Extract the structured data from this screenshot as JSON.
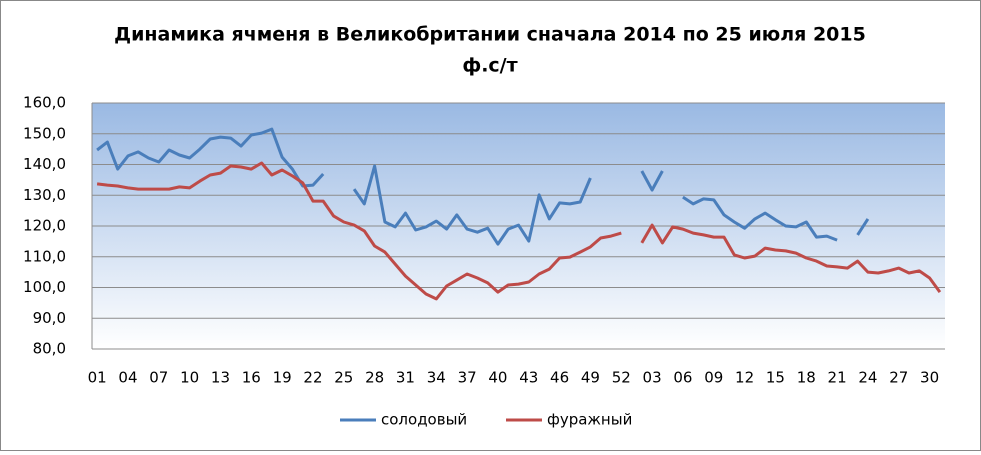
{
  "chart_data": {
    "type": "line",
    "title": "Динамика ячменя в Великобритании сначала 2014 по 25 июля 2015",
    "subtitle": "ф.с/т",
    "categories": [
      "01",
      null,
      null,
      "04",
      null,
      null,
      "07",
      null,
      null,
      "10",
      null,
      null,
      "13",
      null,
      null,
      "16",
      null,
      null,
      "19",
      null,
      null,
      "22",
      null,
      null,
      "25",
      null,
      null,
      "28",
      null,
      null,
      "31",
      null,
      null,
      "34",
      null,
      null,
      "37",
      null,
      null,
      "40",
      null,
      null,
      "43",
      null,
      null,
      "46",
      null,
      null,
      "49",
      null,
      null,
      "52",
      null,
      null,
      "03",
      null,
      null,
      "06",
      null,
      null,
      "09",
      null,
      null,
      "12",
      null,
      null,
      "15",
      null,
      null,
      "18",
      null,
      null,
      "21",
      null,
      null,
      "24",
      null,
      null,
      "27",
      null,
      null,
      "30",
      null
    ],
    "series": [
      {
        "name": "солодовый",
        "color": "#4a7ebb",
        "values": [
          144.7,
          147.3,
          138.5,
          142.8,
          144.1,
          142.1,
          140.8,
          144.7,
          143.1,
          142.1,
          145.0,
          148.3,
          148.9,
          148.6,
          146.0,
          149.6,
          150.2,
          151.5,
          142.4,
          138.5,
          133.0,
          133.3,
          136.9,
          null,
          null,
          132.0,
          127.2,
          139.5,
          121.3,
          119.7,
          124.2,
          118.7,
          119.7,
          121.6,
          119.0,
          123.6,
          119.0,
          118.0,
          119.3,
          114.1,
          119.0,
          120.3,
          115.1,
          130.1,
          122.3,
          127.5,
          127.2,
          127.8,
          135.6,
          null,
          null,
          null,
          null,
          137.9,
          131.7,
          137.9,
          null,
          129.4,
          127.2,
          128.8,
          128.5,
          123.6,
          121.3,
          119.3,
          122.3,
          124.2,
          122.0,
          120.0,
          119.7,
          121.3,
          116.4,
          116.7,
          115.4,
          null,
          117.1,
          122.3,
          null,
          null,
          null,
          null,
          null,
          null,
          null
        ]
      },
      {
        "name": "фуражный",
        "color": "#be4b48",
        "values": [
          133.7,
          133.3,
          133.0,
          132.4,
          132.0,
          132.0,
          132.0,
          132.0,
          132.7,
          132.4,
          134.6,
          136.6,
          137.2,
          139.5,
          139.2,
          138.5,
          140.5,
          136.6,
          138.2,
          136.3,
          134.0,
          128.1,
          128.1,
          123.3,
          121.3,
          120.3,
          118.4,
          113.5,
          111.5,
          107.6,
          103.7,
          100.8,
          97.9,
          96.3,
          100.5,
          102.4,
          104.4,
          103.1,
          101.5,
          98.5,
          100.8,
          101.1,
          101.8,
          104.4,
          106.0,
          109.6,
          109.9,
          111.5,
          113.2,
          116.1,
          116.7,
          117.7,
          null,
          114.5,
          120.3,
          114.5,
          119.7,
          119.0,
          117.7,
          117.1,
          116.4,
          116.4,
          110.6,
          109.6,
          110.2,
          112.8,
          112.2,
          111.9,
          111.2,
          109.6,
          108.6,
          107.0,
          106.7,
          106.3,
          108.6,
          105.0,
          104.7,
          105.4,
          106.3,
          104.7,
          105.4,
          103.1,
          98.5
        ]
      }
    ],
    "ylim": [
      80,
      160
    ],
    "yticks": [
      {
        "value": 80,
        "label": "80,0"
      },
      {
        "value": 90,
        "label": "90,0"
      },
      {
        "value": 100,
        "label": "100,0"
      },
      {
        "value": 110,
        "label": "110,0"
      },
      {
        "value": 120,
        "label": "120,0"
      },
      {
        "value": 130,
        "label": "130,0"
      },
      {
        "value": 140,
        "label": "140,0"
      },
      {
        "value": 150,
        "label": "150,0"
      },
      {
        "value": 160,
        "label": "160,0"
      }
    ],
    "grid": true,
    "legend": "bottom"
  }
}
